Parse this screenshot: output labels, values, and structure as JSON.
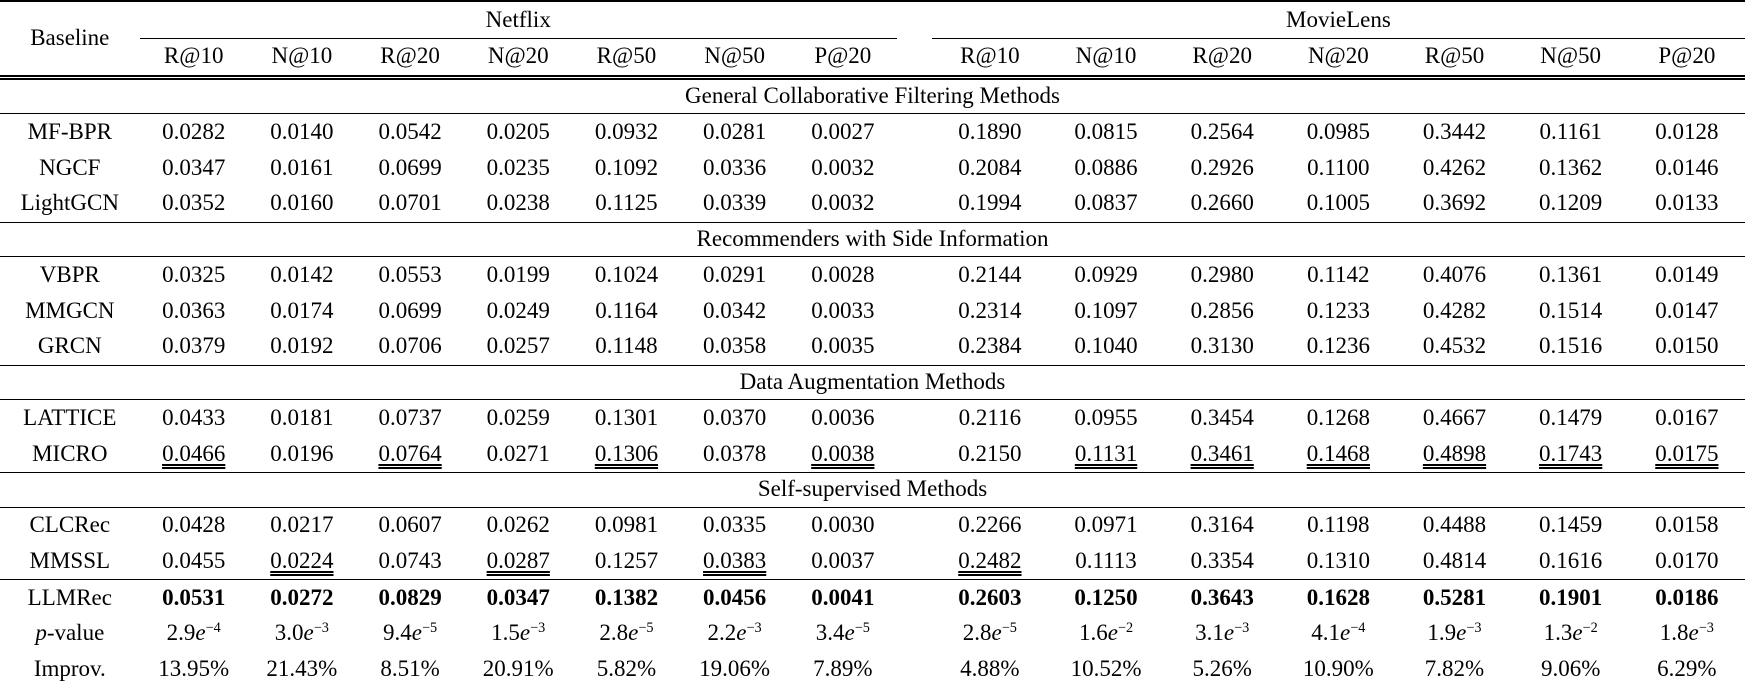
{
  "table": {
    "corner_label": "Baseline",
    "groups": [
      {
        "label": "Netflix",
        "metrics": [
          "R@10",
          "N@10",
          "R@20",
          "N@20",
          "R@50",
          "N@50",
          "P@20"
        ]
      },
      {
        "label": "MovieLens",
        "metrics": [
          "R@10",
          "N@10",
          "R@20",
          "N@20",
          "R@50",
          "N@50",
          "P@20"
        ]
      }
    ],
    "sections": [
      {
        "title": "General Collaborative Filtering Methods",
        "rows": [
          {
            "label": "MF-BPR",
            "netflix": [
              "0.0282",
              "0.0140",
              "0.0542",
              "0.0205",
              "0.0932",
              "0.0281",
              "0.0027"
            ],
            "movielens": [
              "0.1890",
              "0.0815",
              "0.2564",
              "0.0985",
              "0.3442",
              "0.1161",
              "0.0128"
            ]
          },
          {
            "label": "NGCF",
            "netflix": [
              "0.0347",
              "0.0161",
              "0.0699",
              "0.0235",
              "0.1092",
              "0.0336",
              "0.0032"
            ],
            "movielens": [
              "0.2084",
              "0.0886",
              "0.2926",
              "0.1100",
              "0.4262",
              "0.1362",
              "0.0146"
            ]
          },
          {
            "label": "LightGCN",
            "netflix": [
              "0.0352",
              "0.0160",
              "0.0701",
              "0.0238",
              "0.1125",
              "0.0339",
              "0.0032"
            ],
            "movielens": [
              "0.1994",
              "0.0837",
              "0.2660",
              "0.1005",
              "0.3692",
              "0.1209",
              "0.0133"
            ]
          }
        ]
      },
      {
        "title": "Recommenders with Side Information",
        "rows": [
          {
            "label": "VBPR",
            "netflix": [
              "0.0325",
              "0.0142",
              "0.0553",
              "0.0199",
              "0.1024",
              "0.0291",
              "0.0028"
            ],
            "movielens": [
              "0.2144",
              "0.0929",
              "0.2980",
              "0.1142",
              "0.4076",
              "0.1361",
              "0.0149"
            ]
          },
          {
            "label": "MMGCN",
            "netflix": [
              "0.0363",
              "0.0174",
              "0.0699",
              "0.0249",
              "0.1164",
              "0.0342",
              "0.0033"
            ],
            "movielens": [
              "0.2314",
              "0.1097",
              "0.2856",
              "0.1233",
              "0.4282",
              "0.1514",
              "0.0147"
            ]
          },
          {
            "label": "GRCN",
            "netflix": [
              "0.0379",
              "0.0192",
              "0.0706",
              "0.0257",
              "0.1148",
              "0.0358",
              "0.0035"
            ],
            "movielens": [
              "0.2384",
              "0.1040",
              "0.3130",
              "0.1236",
              "0.4532",
              "0.1516",
              "0.0150"
            ]
          }
        ]
      },
      {
        "title": "Data Augmentation Methods",
        "rows": [
          {
            "label": "LATTICE",
            "netflix": [
              "0.0433",
              "0.0181",
              "0.0737",
              "0.0259",
              "0.1301",
              "0.0370",
              "0.0036"
            ],
            "movielens": [
              "0.2116",
              "0.0955",
              "0.3454",
              "0.1268",
              "0.4667",
              "0.1479",
              "0.0167"
            ]
          },
          {
            "label": "MICRO",
            "netflix": [
              "0.0466",
              "0.0196",
              "0.0764",
              "0.0271",
              "0.1306",
              "0.0378",
              "0.0038"
            ],
            "movielens": [
              "0.2150",
              "0.1131",
              "0.3461",
              "0.1468",
              "0.4898",
              "0.1743",
              "0.0175"
            ],
            "underline": {
              "netflix": [
                0,
                2,
                4,
                6
              ],
              "movielens": [
                1,
                2,
                3,
                4,
                5,
                6
              ]
            }
          }
        ]
      },
      {
        "title": "Self-supervised Methods",
        "rows": [
          {
            "label": "CLCRec",
            "netflix": [
              "0.0428",
              "0.0217",
              "0.0607",
              "0.0262",
              "0.0981",
              "0.0335",
              "0.0030"
            ],
            "movielens": [
              "0.2266",
              "0.0971",
              "0.3164",
              "0.1198",
              "0.4488",
              "0.1459",
              "0.0158"
            ]
          },
          {
            "label": "MMSSL",
            "netflix": [
              "0.0455",
              "0.0224",
              "0.0743",
              "0.0287",
              "0.1257",
              "0.0383",
              "0.0037"
            ],
            "movielens": [
              "0.2482",
              "0.1113",
              "0.3354",
              "0.1310",
              "0.4814",
              "0.1616",
              "0.0170"
            ],
            "underline": {
              "netflix": [
                1,
                3,
                5
              ],
              "movielens": [
                0
              ]
            }
          }
        ]
      }
    ],
    "summary_rows": [
      {
        "label": "LLMRec",
        "bold": true,
        "netflix": [
          "0.0531",
          "0.0272",
          "0.0829",
          "0.0347",
          "0.1382",
          "0.0456",
          "0.0041"
        ],
        "movielens": [
          "0.2603",
          "0.1250",
          "0.3643",
          "0.1628",
          "0.5281",
          "0.1901",
          "0.0186"
        ]
      },
      {
        "label": "p-value",
        "type": "pvalue",
        "netflix": [
          "2.9e-4",
          "3.0e-3",
          "9.4e-5",
          "1.5e-3",
          "2.8e-5",
          "2.2e-3",
          "3.4e-5"
        ],
        "movielens": [
          "2.8e-5",
          "1.6e-2",
          "3.1e-3",
          "4.1e-4",
          "1.9e-3",
          "1.3e-2",
          "1.8e-3"
        ]
      },
      {
        "label": "Improv.",
        "netflix": [
          "13.95%",
          "21.43%",
          "8.51%",
          "20.91%",
          "5.82%",
          "19.06%",
          "7.89%"
        ],
        "movielens": [
          "4.88%",
          "10.52%",
          "5.26%",
          "10.90%",
          "7.82%",
          "9.06%",
          "6.29%"
        ]
      }
    ]
  }
}
